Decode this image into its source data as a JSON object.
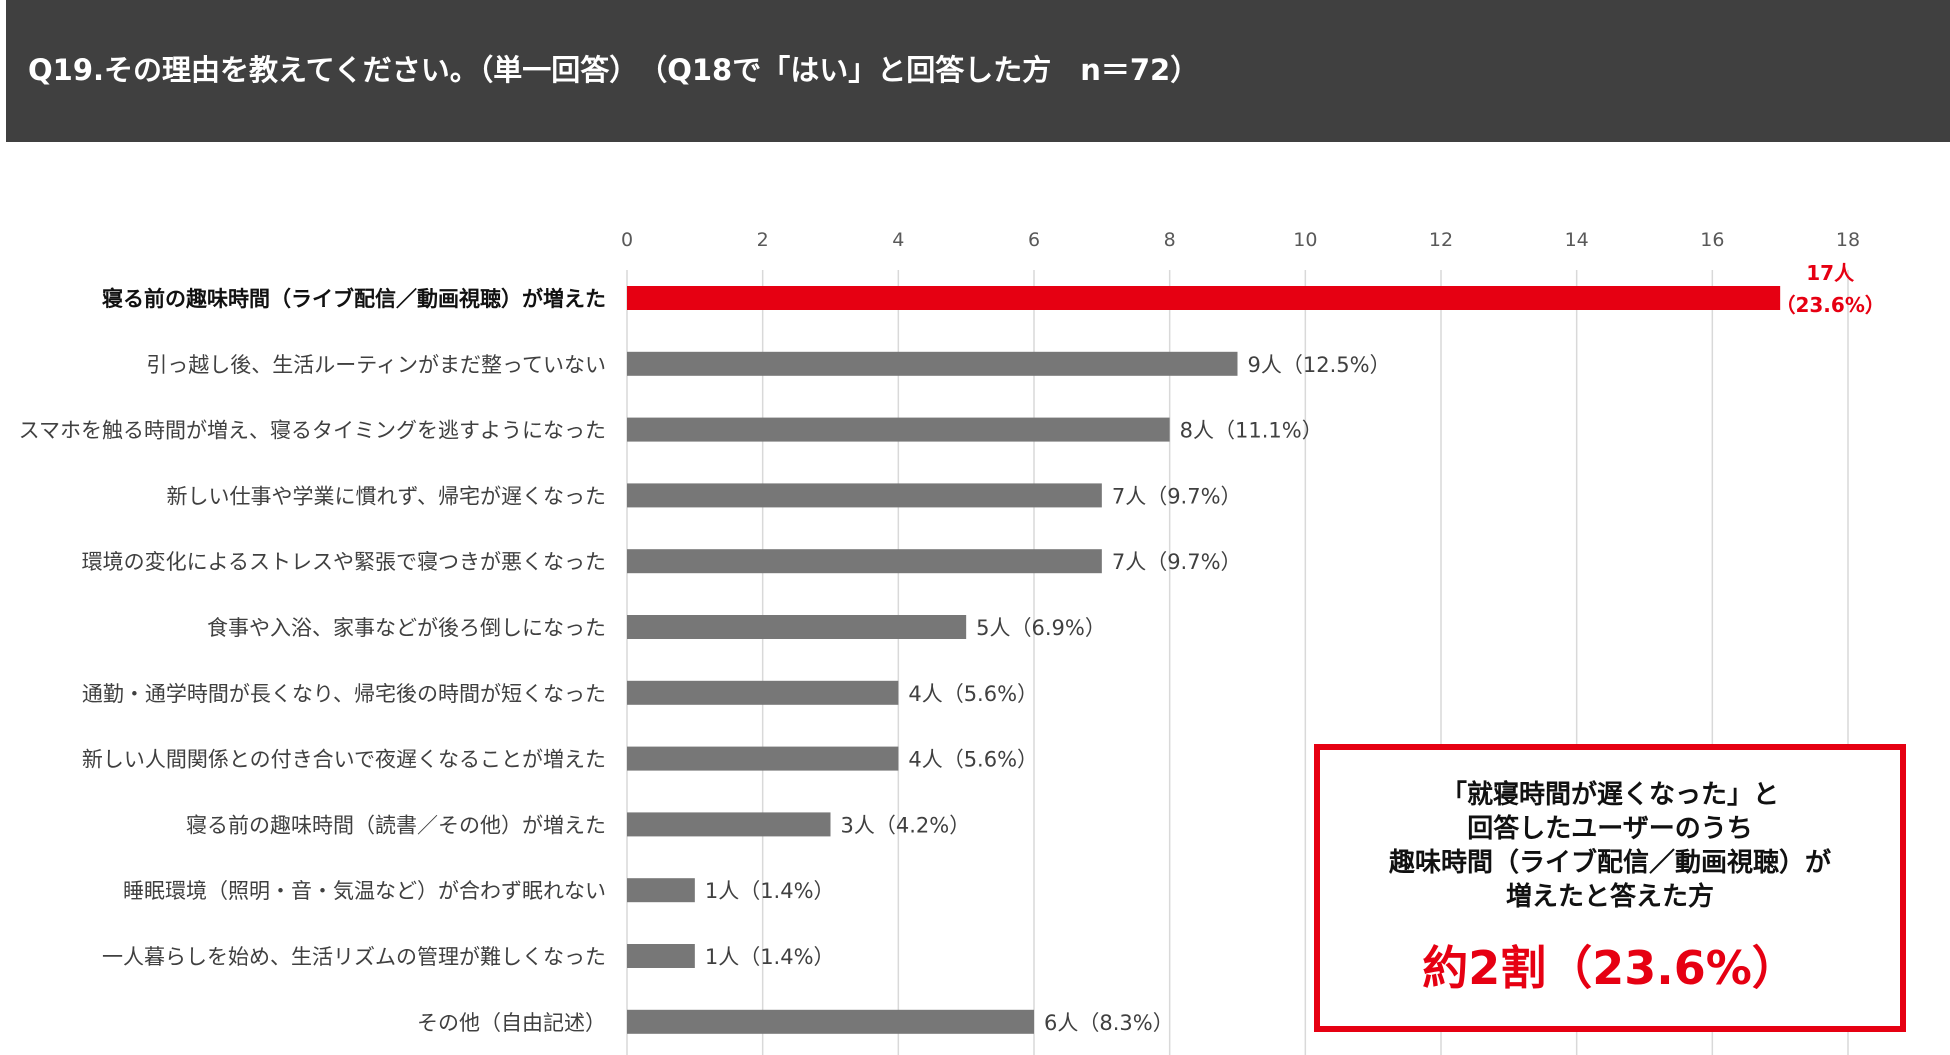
{
  "header": {
    "title": "Q19.その理由を教えてください。（単一回答）　（Q18で「はい」と回答した方　n＝72）"
  },
  "colors": {
    "highlight": "#e60012",
    "bar": "#777777",
    "grid": "#d9d9d9",
    "header_bg": "#404040"
  },
  "chart_data": {
    "type": "bar",
    "orientation": "horizontal",
    "xlim": [
      0,
      18
    ],
    "ticks": [
      0,
      2,
      4,
      6,
      8,
      10,
      12,
      14,
      16,
      18
    ],
    "grid": true,
    "categories": [
      "寝る前の趣味時間（ライブ配信／動画視聴）が増えた",
      "引っ越し後、生活ルーティンがまだ整っていない",
      "スマホを触る時間が増え、寝るタイミングを逃すようになった",
      "新しい仕事や学業に慣れず、帰宅が遅くなった",
      "環境の変化によるストレスや緊張で寝つきが悪くなった",
      "食事や入浴、家事などが後ろ倒しになった",
      "通勤・通学時間が長くなり、帰宅後の時間が短くなった",
      "新しい人間関係との付き合いで夜遅くなることが増えた",
      "寝る前の趣味時間（読書／その他）が増えた",
      "睡眠環境（照明・音・気温など）が合わず眠れない",
      "一人暮らしを始め、生活リズムの管理が難しくなった",
      "その他（自由記述）"
    ],
    "values": [
      17,
      9,
      8,
      7,
      7,
      5,
      4,
      4,
      3,
      1,
      1,
      6
    ],
    "data_labels": [
      "17人\n（23.6%）",
      "9人（12.5%）",
      "8人（11.1%）",
      "7人（9.7%）",
      "7人（9.7%）",
      "5人（6.9%）",
      "4人（5.6%）",
      "4人（5.6%）",
      "3人（4.2%）",
      "1人（1.4%）",
      "1人（1.4%）",
      "6人（8.3%）"
    ],
    "highlight_index": 0
  },
  "callout": {
    "lines": [
      "「就寝時間が遅くなった」と",
      "回答したユーザーのうち",
      "趣味時間（ライブ配信／動画視聴）が",
      "増えたと答えた方"
    ],
    "big": "約2割（23.6%）"
  }
}
